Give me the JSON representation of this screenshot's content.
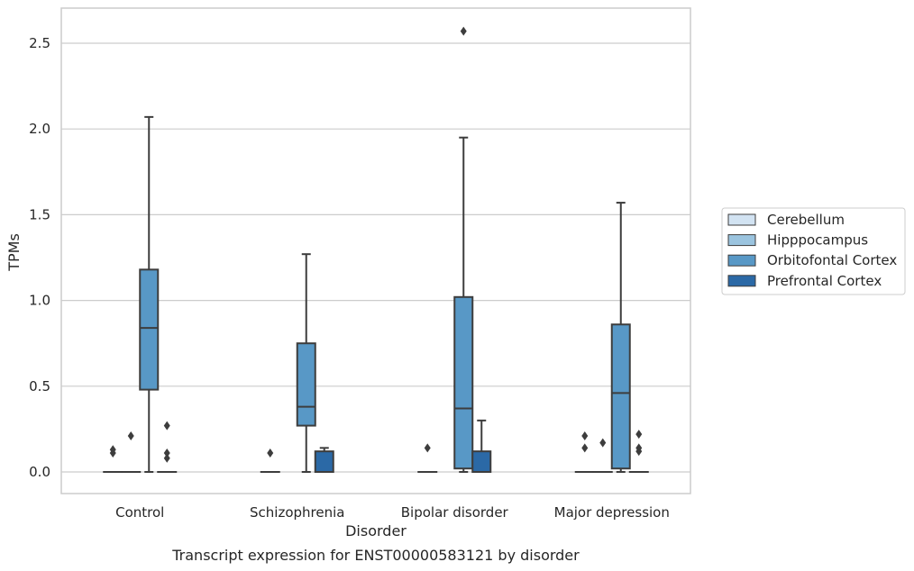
{
  "chart_data": {
    "type": "box",
    "title": "",
    "caption": "Transcript expression for ENST00000583121 by disorder",
    "xlabel": "Disorder",
    "ylabel": "TPMs",
    "ylim": [
      -0.125,
      2.7
    ],
    "yticks": [
      "0.0",
      "0.5",
      "1.0",
      "1.5",
      "2.0",
      "2.5"
    ],
    "grid": true,
    "legend_position": "right",
    "categories": [
      "Control",
      "Schizophrenia",
      "Bipolar disorder",
      "Major depression"
    ],
    "series": [
      {
        "name": "Cerebellum",
        "color": "#d2e3f2",
        "boxes": [
          {
            "q1": 0,
            "median": 0,
            "q3": 0,
            "whislo": 0,
            "whishi": 0,
            "fliers": [
              0.11,
              0.13
            ]
          },
          {
            "q1": 0,
            "median": 0,
            "q3": 0,
            "whislo": 0,
            "whishi": 0,
            "fliers": [
              0.11
            ]
          },
          {
            "q1": 0,
            "median": 0,
            "q3": 0,
            "whislo": 0,
            "whishi": 0,
            "fliers": [
              0.14
            ]
          },
          {
            "q1": 0,
            "median": 0,
            "q3": 0,
            "whislo": 0,
            "whishi": 0,
            "fliers": [
              0.14,
              0.21
            ]
          }
        ]
      },
      {
        "name": "Hipppocampus",
        "color": "#9bc4df",
        "boxes": [
          {
            "q1": 0,
            "median": 0,
            "q3": 0,
            "whislo": 0,
            "whishi": 0,
            "fliers": [
              0.21
            ]
          },
          null,
          null,
          {
            "q1": 0,
            "median": 0,
            "q3": 0,
            "whislo": 0,
            "whishi": 0,
            "fliers": [
              0.17
            ]
          }
        ]
      },
      {
        "name": "Orbitofontal Cortex",
        "color": "#5898c6",
        "boxes": [
          {
            "q1": 0.48,
            "median": 0.84,
            "q3": 1.18,
            "whislo": 0,
            "whishi": 2.07,
            "fliers": []
          },
          {
            "q1": 0.27,
            "median": 0.38,
            "q3": 0.75,
            "whislo": 0,
            "whishi": 1.27,
            "fliers": []
          },
          {
            "q1": 0.02,
            "median": 0.37,
            "q3": 1.02,
            "whislo": 0,
            "whishi": 1.95,
            "fliers": [
              2.57
            ]
          },
          {
            "q1": 0.02,
            "median": 0.46,
            "q3": 0.86,
            "whislo": 0,
            "whishi": 1.57,
            "fliers": []
          }
        ]
      },
      {
        "name": "Prefrontal Cortex",
        "color": "#2b69a6",
        "boxes": [
          {
            "q1": 0,
            "median": 0,
            "q3": 0,
            "whislo": 0,
            "whishi": 0,
            "fliers": [
              0.08,
              0.11,
              0.27
            ]
          },
          {
            "q1": 0,
            "median": 0,
            "q3": 0.12,
            "whislo": 0,
            "whishi": 0.14,
            "fliers": []
          },
          {
            "q1": 0,
            "median": 0,
            "q3": 0.12,
            "whislo": 0,
            "whishi": 0.3,
            "fliers": []
          },
          {
            "q1": 0,
            "median": 0,
            "q3": 0,
            "whislo": 0,
            "whishi": 0,
            "fliers": [
              0.12,
              0.14,
              0.22
            ]
          }
        ]
      }
    ]
  }
}
